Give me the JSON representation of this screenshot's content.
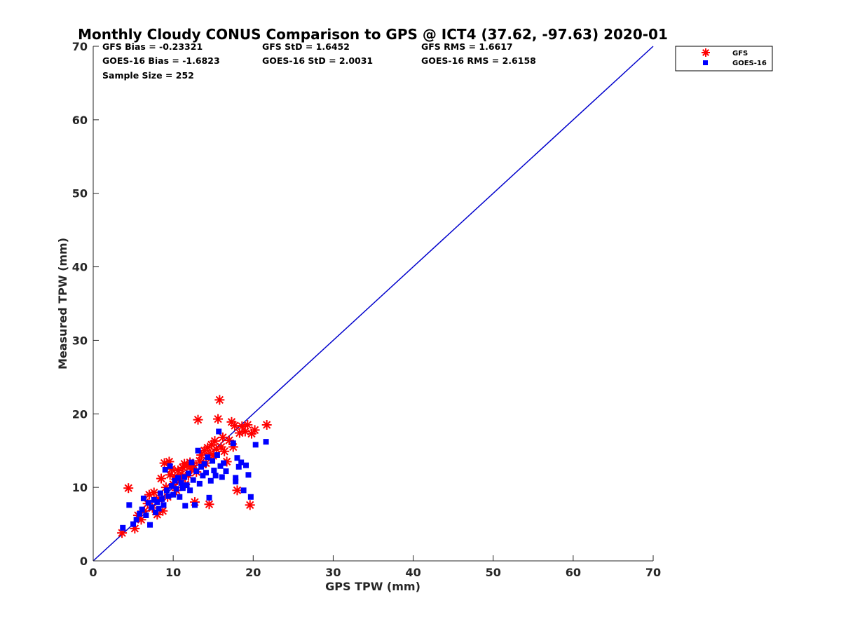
{
  "chart_data": {
    "type": "scatter",
    "title": "Monthly Cloudy CONUS Comparison to GPS @ ICT4 (37.62, -97.63) 2020-01",
    "xlabel": "GPS TPW (mm)",
    "ylabel": "Measured TPW (mm)",
    "xlim": [
      0,
      70
    ],
    "ylim": [
      0,
      70
    ],
    "xticks": [
      "0",
      "10",
      "20",
      "30",
      "40",
      "50",
      "60",
      "70"
    ],
    "yticks": [
      "0",
      "10",
      "20",
      "30",
      "40",
      "50",
      "60",
      "70"
    ],
    "grid": false,
    "legend_position": "top-right, outside axes",
    "stats": [
      "GFS Bias = -0.23321",
      "GFS StD = 1.6452",
      "GFS RMS = 1.6617",
      "GOES-16 Bias = -1.6823",
      "GOES-16 StD = 2.0031",
      "GOES-16 RMS = 2.6158",
      "Sample Size = 252"
    ],
    "reference_line": {
      "x": [
        0,
        70
      ],
      "y": [
        0,
        70
      ],
      "color": "#0000cc"
    },
    "series": [
      {
        "name": "GFS",
        "marker": "asterisk",
        "color": "#ff0000",
        "points": [
          [
            3.6,
            3.8
          ],
          [
            4.4,
            9.9
          ],
          [
            5.2,
            4.4
          ],
          [
            5.6,
            6.2
          ],
          [
            6.0,
            5.6
          ],
          [
            6.4,
            6.8
          ],
          [
            6.8,
            7.8
          ],
          [
            7.0,
            9.0
          ],
          [
            7.4,
            7.2
          ],
          [
            7.6,
            9.3
          ],
          [
            8.0,
            6.3
          ],
          [
            8.2,
            8.4
          ],
          [
            8.5,
            11.2
          ],
          [
            8.7,
            6.8
          ],
          [
            8.9,
            13.3
          ],
          [
            9.1,
            10.0
          ],
          [
            9.3,
            8.7
          ],
          [
            9.5,
            13.5
          ],
          [
            9.6,
            11.7
          ],
          [
            9.8,
            12.5
          ],
          [
            10.0,
            10.4
          ],
          [
            10.2,
            11.5
          ],
          [
            10.4,
            9.6
          ],
          [
            10.6,
            12.3
          ],
          [
            10.8,
            10.9
          ],
          [
            11.0,
            11.8
          ],
          [
            11.2,
            12.7
          ],
          [
            11.4,
            13.2
          ],
          [
            11.5,
            10.4
          ],
          [
            11.7,
            12.9
          ],
          [
            11.9,
            11.6
          ],
          [
            12.1,
            13.4
          ],
          [
            12.3,
            12.5
          ],
          [
            12.5,
            13.0
          ],
          [
            12.7,
            8.0
          ],
          [
            12.9,
            12.1
          ],
          [
            13.1,
            19.2
          ],
          [
            13.3,
            13.6
          ],
          [
            13.5,
            14.4
          ],
          [
            13.7,
            13.1
          ],
          [
            13.9,
            15.0
          ],
          [
            14.1,
            13.3
          ],
          [
            14.3,
            15.4
          ],
          [
            14.5,
            7.7
          ],
          [
            14.6,
            14.6
          ],
          [
            14.8,
            15.8
          ],
          [
            15.0,
            14.3
          ],
          [
            15.2,
            16.3
          ],
          [
            15.4,
            15.2
          ],
          [
            15.6,
            19.3
          ],
          [
            15.8,
            21.9
          ],
          [
            16.0,
            15.5
          ],
          [
            16.2,
            16.8
          ],
          [
            16.4,
            14.9
          ],
          [
            16.7,
            13.5
          ],
          [
            17.0,
            16.4
          ],
          [
            17.3,
            18.9
          ],
          [
            17.5,
            15.5
          ],
          [
            17.7,
            18.4
          ],
          [
            18.0,
            9.6
          ],
          [
            18.3,
            17.4
          ],
          [
            18.6,
            18.3
          ],
          [
            19.0,
            17.6
          ],
          [
            19.3,
            18.5
          ],
          [
            19.6,
            7.6
          ],
          [
            19.8,
            17.3
          ],
          [
            20.2,
            17.8
          ],
          [
            21.7,
            18.5
          ]
        ]
      },
      {
        "name": "GOES-16",
        "marker": "square",
        "color": "#0000ff",
        "points": [
          [
            3.7,
            4.5
          ],
          [
            4.5,
            7.6
          ],
          [
            5.0,
            5.0
          ],
          [
            5.4,
            5.6
          ],
          [
            5.8,
            6.4
          ],
          [
            6.1,
            7.0
          ],
          [
            6.3,
            8.5
          ],
          [
            6.6,
            6.2
          ],
          [
            6.9,
            7.9
          ],
          [
            7.1,
            4.9
          ],
          [
            7.3,
            7.3
          ],
          [
            7.6,
            8.3
          ],
          [
            7.8,
            6.6
          ],
          [
            8.0,
            8.0
          ],
          [
            8.2,
            7.1
          ],
          [
            8.4,
            9.2
          ],
          [
            8.6,
            8.4
          ],
          [
            8.8,
            7.6
          ],
          [
            9.0,
            12.4
          ],
          [
            9.2,
            9.6
          ],
          [
            9.4,
            8.8
          ],
          [
            9.6,
            12.9
          ],
          [
            9.8,
            10.2
          ],
          [
            10.0,
            9.0
          ],
          [
            10.2,
            10.9
          ],
          [
            10.4,
            9.8
          ],
          [
            10.6,
            11.3
          ],
          [
            10.8,
            8.7
          ],
          [
            11.0,
            10.6
          ],
          [
            11.2,
            9.9
          ],
          [
            11.4,
            11.4
          ],
          [
            11.5,
            7.5
          ],
          [
            11.7,
            10.3
          ],
          [
            11.9,
            11.9
          ],
          [
            12.1,
            9.6
          ],
          [
            12.3,
            13.4
          ],
          [
            12.5,
            11.0
          ],
          [
            12.7,
            7.6
          ],
          [
            12.9,
            12.2
          ],
          [
            13.1,
            15.0
          ],
          [
            13.3,
            10.5
          ],
          [
            13.5,
            12.8
          ],
          [
            13.7,
            11.6
          ],
          [
            13.9,
            13.2
          ],
          [
            14.1,
            12.0
          ],
          [
            14.3,
            14.1
          ],
          [
            14.5,
            8.6
          ],
          [
            14.7,
            10.9
          ],
          [
            14.9,
            13.6
          ],
          [
            15.1,
            12.3
          ],
          [
            15.3,
            11.6
          ],
          [
            15.5,
            14.4
          ],
          [
            15.7,
            17.6
          ],
          [
            15.9,
            12.9
          ],
          [
            16.1,
            11.4
          ],
          [
            16.3,
            13.3
          ],
          [
            16.6,
            12.2
          ],
          [
            17.5,
            16.0
          ],
          [
            17.8,
            11.3
          ],
          [
            17.8,
            10.8
          ],
          [
            18.0,
            14.0
          ],
          [
            18.2,
            12.8
          ],
          [
            18.5,
            13.4
          ],
          [
            18.8,
            9.6
          ],
          [
            19.1,
            13.0
          ],
          [
            19.4,
            11.7
          ],
          [
            19.7,
            8.7
          ],
          [
            20.3,
            15.8
          ],
          [
            21.6,
            16.2
          ]
        ]
      }
    ]
  }
}
